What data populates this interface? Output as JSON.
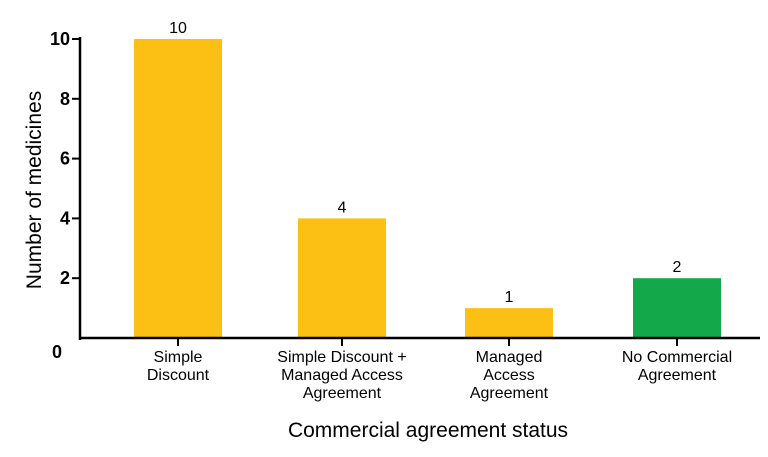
{
  "chart_data": {
    "type": "bar",
    "title": "",
    "xlabel": "Commercial agreement status",
    "ylabel": "Number of medicines",
    "categories": [
      [
        "Simple",
        "Discount"
      ],
      [
        "Simple Discount +",
        "Managed Access",
        "Agreement"
      ],
      [
        "Managed",
        "Access",
        "Agreement"
      ],
      [
        "No Commercial",
        "Agreement"
      ]
    ],
    "values": [
      10,
      4,
      1,
      2
    ],
    "bar_colors": [
      "#FCBF14",
      "#FCBF14",
      "#FCBF14",
      "#13A94B"
    ],
    "ylim": [
      0,
      10
    ],
    "yticks": [
      0,
      2,
      4,
      6,
      8,
      10
    ],
    "grid": false,
    "legend": "none"
  }
}
